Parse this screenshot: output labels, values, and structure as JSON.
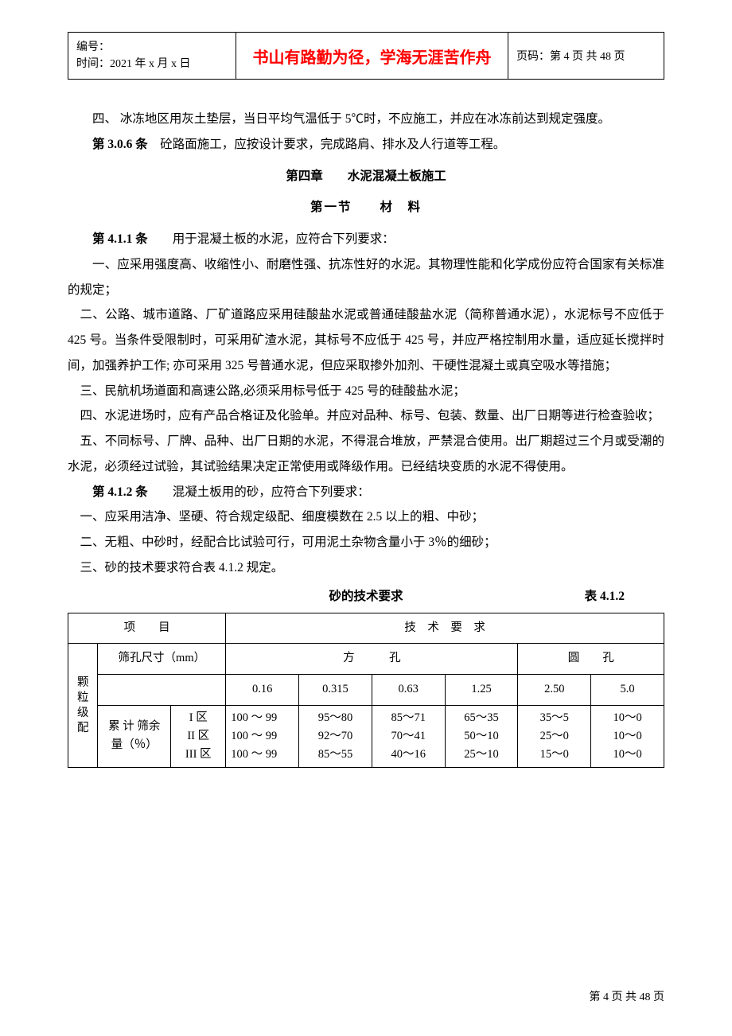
{
  "header": {
    "left_line1": "编号：",
    "left_line2": "时间：2021 年 x 月 x 日",
    "center": "书山有路勤为径，学海无涯苦作舟",
    "right": "页码：第 4 页  共 48 页",
    "center_color": "#ff0000"
  },
  "body": {
    "p1": "四、 冰冻地区用灰土垫层，当日平均气温低于 5℃时，不应施工，并应在冰冻前达到规定强度。",
    "p2_label": "第 3.0.6 条",
    "p2_text": "　砼路面施工，应按设计要求，完成路肩、排水及人行道等工程。",
    "chapter": "第四章　　水泥混凝土板施工",
    "section": "第一节　　材　料",
    "p3_label": "第 4.1.1 条",
    "p3_text": "　　用于混凝土板的水泥，应符合下列要求：",
    "p4": "一、应采用强度高、收缩性小、耐磨性强、抗冻性好的水泥。其物理性能和化学成份应符合国家有关标准的规定；",
    "p5": "二、公路、城市道路、厂矿道路应采用硅酸盐水泥或普通硅酸盐水泥（简称普通水泥），水泥标号不应低于 425 号。当条件受限制时，可采用矿渣水泥，其标号不应低于 425 号，并应严格控制用水量，适应延长搅拌时间，加强养护工作; 亦可采用 325 号普通水泥，但应采取掺外加剂、干硬性混凝土或真空吸水等措施；",
    "p6": "三、民航机场道面和高速公路,必须采用标号低于 425 号的硅酸盐水泥；",
    "p7": "四、水泥进场时，应有产品合格证及化验单。并应对品种、标号、包装、数量、出厂日期等进行检查验收；",
    "p8": "五、不同标号、厂牌、品种、出厂日期的水泥，不得混合堆放，严禁混合使用。出厂期超过三个月或受潮的水泥，必须经过试验，其试验结果决定正常使用或降级作用。已经结块变质的水泥不得使用。",
    "p9_label": "第 4.1.2 条",
    "p9_text": "　　混凝土板用的砂，应符合下列要求：",
    "p10": "一、应采用洁净、坚硬、符合规定级配、细度模数在 2.5 以上的粗、中砂；",
    "p11": "二、无粗、中砂时，经配合比试验可行，可用泥土杂物含量小于 3％的细砂；",
    "p12": "三、砂的技术要求符合表 4.1.2 规定。"
  },
  "table": {
    "title": "砂的技术要求",
    "label": "表 4.1.2",
    "header_item": "项　　目",
    "header_req": "技　术　要　求",
    "row_group": "颗粒级配",
    "sieve_label": "筛孔尺寸（mm）",
    "square_hole": "方　　　孔",
    "round_hole": "圆　　孔",
    "sizes": [
      "0.16",
      "0.315",
      "0.63",
      "1.25",
      "2.50",
      "5.0"
    ],
    "cum_label": "累 计 筛余 量（％）",
    "zones": "I 区\nII 区\nIII 区",
    "cells": {
      "c1": "100 ～ 99\n100 ～ 99\n100 ～ 99",
      "c2": "95～80\n92～70\n85～55",
      "c3": "85～71\n70～41\n40～16",
      "c4": "65～35\n50～10\n25～10",
      "c5": "35～5\n25～0\n15～0",
      "c6": "10～0\n10～0\n10～0"
    }
  },
  "footer": "第  4  页  共  48  页"
}
